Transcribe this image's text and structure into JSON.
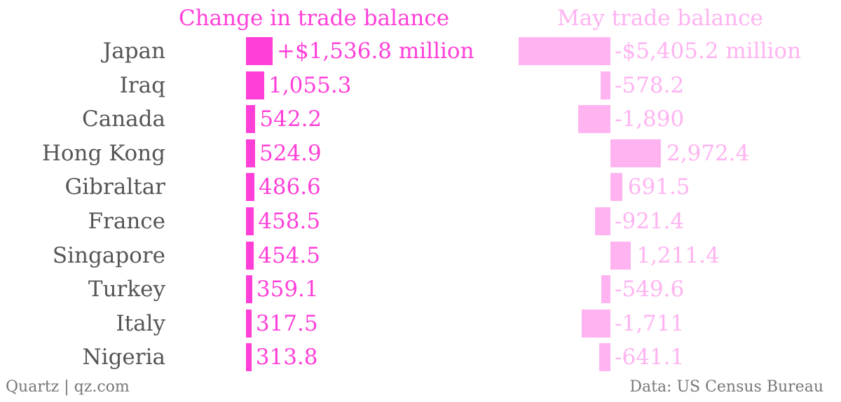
{
  "colors": {
    "change": "#ff3fd8",
    "may": "#ffb3f1",
    "label": "#555555",
    "footer": "#777777"
  },
  "chart_data": [
    {
      "type": "bar",
      "orientation": "horizontal",
      "title": "Change in trade balance",
      "categories": [
        "Japan",
        "Iraq",
        "Canada",
        "Hong Kong",
        "Gibraltar",
        "France",
        "Singapore",
        "Turkey",
        "Italy",
        "Nigeria"
      ],
      "values": [
        1536.8,
        1055.3,
        542.2,
        524.9,
        486.6,
        458.5,
        454.5,
        359.1,
        317.5,
        313.8
      ],
      "labels": [
        "+$1,536.8 million",
        "1,055.3",
        "542.2",
        "524.9",
        "486.6",
        "458.5",
        "454.5",
        "359.1",
        "317.5",
        "313.8"
      ],
      "units": "$ million"
    },
    {
      "type": "bar",
      "orientation": "horizontal",
      "title": "May trade balance",
      "categories": [
        "Japan",
        "Iraq",
        "Canada",
        "Hong Kong",
        "Gibraltar",
        "France",
        "Singapore",
        "Turkey",
        "Italy",
        "Nigeria"
      ],
      "values": [
        -5405.2,
        -578.2,
        -1890,
        2972.4,
        691.5,
        -921.4,
        1211.4,
        -549.6,
        -1711,
        -641.1
      ],
      "labels": [
        "-$5,405.2 million",
        "-578.2",
        "-1,890",
        "2,972.4",
        "691.5",
        "-921.4",
        "1,211.4",
        "-549.6",
        "-1,711",
        "-641.1"
      ],
      "units": "$ million"
    }
  ],
  "footer": {
    "left": "Quartz | qz.com",
    "right": "Data: US Census Bureau"
  }
}
